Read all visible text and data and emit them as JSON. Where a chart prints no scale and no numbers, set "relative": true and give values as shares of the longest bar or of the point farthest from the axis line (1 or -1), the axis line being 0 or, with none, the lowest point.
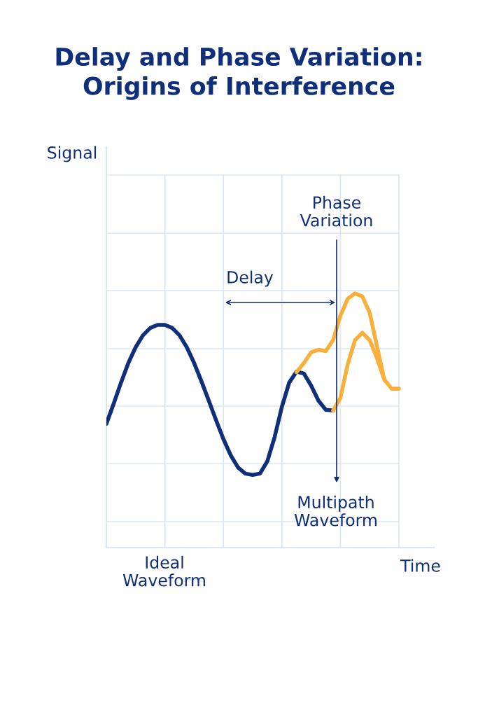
{
  "chart_data": {
    "type": "line",
    "title": "Delay and Phase Variation:\nOrigins of Interference",
    "xlabel": "Time",
    "relative": true,
    "grid": true,
    "legend": false,
    "marker": "none",
    "line_style": "solid",
    "categories": [
      null,
      null,
      null,
      null,
      null,
      null,
      null,
      null,
      null,
      null,
      null,
      null,
      null,
      null,
      null,
      null,
      null,
      null,
      null,
      null,
      null,
      null,
      null,
      null,
      null,
      null,
      null,
      null,
      null,
      null,
      null,
      null,
      null,
      null,
      null,
      null,
      null,
      null,
      null,
      null,
      null
    ],
    "series": [
      {
        "color": "#0f2f7a",
        "values": [
          0.487,
          0.566,
          0.649,
          0.726,
          0.788,
          0.835,
          0.864,
          0.876,
          0.876,
          0.864,
          0.835,
          0.788,
          0.726,
          0.654,
          0.578,
          0.501,
          0.427,
          0.363,
          0.315,
          0.291,
          0.286,
          0.291,
          0.339,
          0.434,
          0.554,
          0.649,
          0.692,
          0.685,
          0.637,
          0.578,
          0.542,
          0.539,
          null,
          null,
          null,
          null,
          null,
          null,
          null,
          null,
          null
        ]
      },
      {
        "color": "#f8b03c",
        "values": [
          null,
          null,
          null,
          null,
          null,
          null,
          null,
          null,
          null,
          null,
          null,
          null,
          null,
          null,
          null,
          null,
          null,
          null,
          null,
          null,
          null,
          null,
          null,
          null,
          null,
          null,
          0.69,
          0.726,
          0.768,
          0.778,
          0.773,
          0.816,
          0.912,
          0.979,
          1.0,
          0.988,
          0.924,
          0.792,
          0.661,
          0.625,
          0.625
        ]
      },
      {
        "color": "#f8b03c",
        "values": [
          null,
          null,
          null,
          null,
          null,
          null,
          null,
          null,
          null,
          null,
          null,
          null,
          null,
          null,
          null,
          null,
          null,
          null,
          null,
          null,
          null,
          null,
          null,
          null,
          null,
          null,
          null,
          null,
          null,
          null,
          null,
          0.539,
          0.589,
          0.721,
          0.816,
          0.845,
          0.816,
          0.745,
          0.661,
          null,
          null
        ]
      }
    ],
    "annotations": [
      "Signal",
      "Delay",
      "Phase\nVariation",
      "Multipath\nWaveform",
      "Ideal\nWaveform"
    ]
  }
}
